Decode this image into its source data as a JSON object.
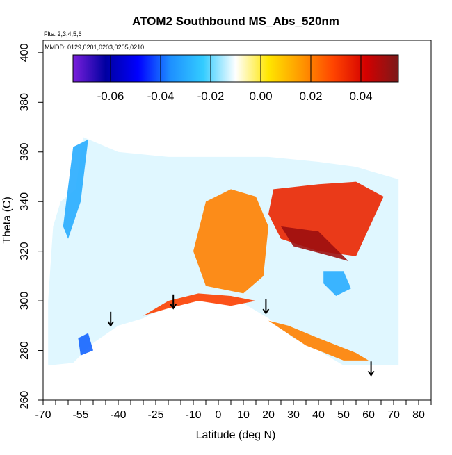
{
  "chart_data": {
    "type": "heatmap",
    "title": "ATOM2 Southbound MS_Abs_520nm",
    "annotations": [
      "Flts: 2,3,4,5,6",
      "MMDD: 0129,0201,0203,0205,0210"
    ],
    "xlabel": "Latitude (deg N)",
    "ylabel": "Theta (C)",
    "xlim": [
      -70,
      85
    ],
    "ylim": [
      260,
      405
    ],
    "x_ticks": [
      -70,
      -55,
      -40,
      -25,
      -10,
      0,
      10,
      20,
      30,
      40,
      50,
      60,
      70,
      80
    ],
    "x_minor_ticks": [
      -65,
      -60,
      -50,
      -45,
      -35,
      -30,
      -20,
      -15,
      -5,
      5,
      15,
      25,
      35,
      45,
      55,
      65,
      75,
      85
    ],
    "y_ticks": [
      260,
      280,
      300,
      320,
      340,
      360,
      380,
      400
    ],
    "colorbar": {
      "range": [
        -0.075,
        0.055
      ],
      "ticks": [
        -0.06,
        -0.04,
        -0.02,
        0.0,
        0.02,
        0.04
      ],
      "tick_labels": [
        "-0.06",
        "-0.04",
        "-0.02",
        "0.00",
        "0.02",
        "0.04"
      ],
      "colors": [
        "#7a1fdc",
        "#0000a0",
        "#0000ff",
        "#1e90ff",
        "#33ccff",
        "#ffffff",
        "#ffe600",
        "#ff9900",
        "#ff4400",
        "#d40000",
        "#7a1a1a"
      ]
    },
    "data_envelope": {
      "top": [
        [
          -57,
          345
        ],
        [
          -54,
          366
        ],
        [
          -40,
          360
        ],
        [
          -20,
          358
        ],
        [
          0,
          358
        ],
        [
          20,
          358
        ],
        [
          40,
          356
        ],
        [
          55,
          354
        ],
        [
          65,
          351
        ],
        [
          72,
          349
        ]
      ],
      "bottom": [
        [
          72,
          274
        ],
        [
          60,
          274
        ],
        [
          50,
          274
        ],
        [
          40,
          280
        ],
        [
          30,
          285
        ],
        [
          20,
          293
        ],
        [
          10,
          299
        ],
        [
          0,
          301
        ],
        [
          -8,
          302
        ],
        [
          -20,
          298
        ],
        [
          -30,
          293
        ],
        [
          -40,
          290
        ],
        [
          -50,
          283
        ],
        [
          -58,
          275
        ],
        [
          -68,
          274
        ]
      ],
      "left": [
        [
          -68,
          274
        ],
        [
          -68,
          300
        ],
        [
          -66,
          330
        ],
        [
          -63,
          340
        ],
        [
          -57,
          345
        ]
      ]
    },
    "features": [
      {
        "name": "central positive band",
        "value": 0.02,
        "polygon": [
          [
            -5,
            340
          ],
          [
            5,
            345
          ],
          [
            15,
            342
          ],
          [
            20,
            330
          ],
          [
            18,
            310
          ],
          [
            10,
            303
          ],
          [
            -5,
            306
          ],
          [
            -10,
            320
          ]
        ]
      },
      {
        "name": "northeast positive wedge",
        "value": 0.035,
        "polygon": [
          [
            22,
            345
          ],
          [
            40,
            347
          ],
          [
            55,
            348
          ],
          [
            66,
            342
          ],
          [
            55,
            318
          ],
          [
            40,
            320
          ],
          [
            25,
            325
          ],
          [
            20,
            335
          ]
        ]
      },
      {
        "name": "northeast maximum",
        "value": 0.05,
        "polygon": [
          [
            25,
            330
          ],
          [
            40,
            328
          ],
          [
            52,
            316
          ],
          [
            45,
            318
          ],
          [
            30,
            322
          ]
        ]
      },
      {
        "name": "southern rim positive",
        "value": 0.03,
        "polygon": [
          [
            -30,
            294
          ],
          [
            -20,
            300
          ],
          [
            -8,
            303
          ],
          [
            5,
            302
          ],
          [
            15,
            300
          ],
          [
            5,
            298
          ],
          [
            -8,
            300
          ],
          [
            -20,
            297
          ]
        ]
      },
      {
        "name": "northeast rim positive",
        "value": 0.02,
        "polygon": [
          [
            20,
            292
          ],
          [
            35,
            282
          ],
          [
            50,
            276
          ],
          [
            60,
            276
          ],
          [
            55,
            279
          ],
          [
            40,
            285
          ],
          [
            28,
            290
          ]
        ]
      },
      {
        "name": "low-latitude negative",
        "value": -0.03,
        "polygon": [
          [
            42,
            312
          ],
          [
            50,
            312
          ],
          [
            53,
            305
          ],
          [
            47,
            302
          ],
          [
            42,
            307
          ]
        ]
      },
      {
        "name": "southern negative patch",
        "value": -0.04,
        "polygon": [
          [
            -56,
            285
          ],
          [
            -52,
            287
          ],
          [
            -50,
            280
          ],
          [
            -55,
            278
          ]
        ]
      },
      {
        "name": "southern edge negative",
        "value": -0.03,
        "polygon": [
          [
            -62,
            330
          ],
          [
            -58,
            362
          ],
          [
            -52,
            365
          ],
          [
            -55,
            340
          ],
          [
            -60,
            325
          ]
        ]
      }
    ],
    "tropopause_arrows": [
      {
        "lat": -43,
        "theta": 290
      },
      {
        "lat": -18,
        "theta": 297
      },
      {
        "lat": 19,
        "theta": 295
      },
      {
        "lat": 61,
        "theta": 270
      }
    ]
  }
}
